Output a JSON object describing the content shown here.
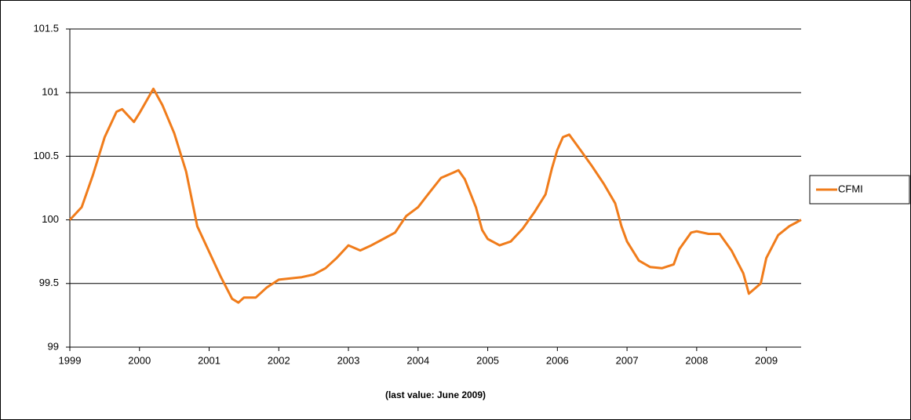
{
  "chart_data": {
    "type": "line",
    "xlabel": "(last value: June 2009)",
    "x": [
      1999.0,
      1999.17,
      1999.33,
      1999.5,
      1999.67,
      1999.75,
      1999.92,
      2000.0,
      2000.2,
      2000.33,
      2000.5,
      2000.67,
      2000.83,
      2001.0,
      2001.17,
      2001.33,
      2001.42,
      2001.5,
      2001.67,
      2001.83,
      2002.0,
      2002.17,
      2002.33,
      2002.5,
      2002.67,
      2002.83,
      2003.0,
      2003.17,
      2003.33,
      2003.5,
      2003.67,
      2003.83,
      2004.0,
      2004.17,
      2004.33,
      2004.5,
      2004.58,
      2004.67,
      2004.83,
      2004.92,
      2005.0,
      2005.17,
      2005.33,
      2005.5,
      2005.67,
      2005.83,
      2005.92,
      2006.0,
      2006.08,
      2006.17,
      2006.33,
      2006.5,
      2006.67,
      2006.83,
      2006.92,
      2007.0,
      2007.17,
      2007.33,
      2007.5,
      2007.67,
      2007.75,
      2007.92,
      2008.0,
      2008.17,
      2008.33,
      2008.5,
      2008.67,
      2008.75,
      2008.92,
      2009.0,
      2009.17,
      2009.33,
      2009.5
    ],
    "series": [
      {
        "name": "CFMI",
        "color": "#f07c1b",
        "values": [
          100.0,
          100.1,
          100.35,
          100.65,
          100.85,
          100.87,
          100.77,
          100.84,
          101.03,
          100.9,
          100.68,
          100.38,
          99.95,
          99.75,
          99.55,
          99.38,
          99.35,
          99.39,
          99.39,
          99.47,
          99.53,
          99.54,
          99.55,
          99.57,
          99.62,
          99.7,
          99.8,
          99.76,
          99.8,
          99.85,
          99.9,
          100.03,
          100.1,
          100.22,
          100.33,
          100.37,
          100.39,
          100.32,
          100.1,
          99.92,
          99.85,
          99.8,
          99.83,
          99.93,
          100.06,
          100.2,
          100.4,
          100.55,
          100.65,
          100.67,
          100.55,
          100.42,
          100.28,
          100.13,
          99.95,
          99.83,
          99.68,
          99.63,
          99.62,
          99.65,
          99.77,
          99.9,
          99.91,
          99.89,
          99.89,
          99.76,
          99.58,
          99.42,
          99.5,
          99.7,
          99.88,
          99.95,
          100.0
        ]
      }
    ],
    "xlim": [
      1999,
      2009.5
    ],
    "xticks": [
      1999,
      2000,
      2001,
      2002,
      2003,
      2004,
      2005,
      2006,
      2007,
      2008,
      2009
    ],
    "ylim": [
      99,
      101.5
    ],
    "yticks": [
      99,
      99.5,
      100,
      100.5,
      101,
      101.5
    ],
    "grid": true,
    "legend": "right"
  }
}
